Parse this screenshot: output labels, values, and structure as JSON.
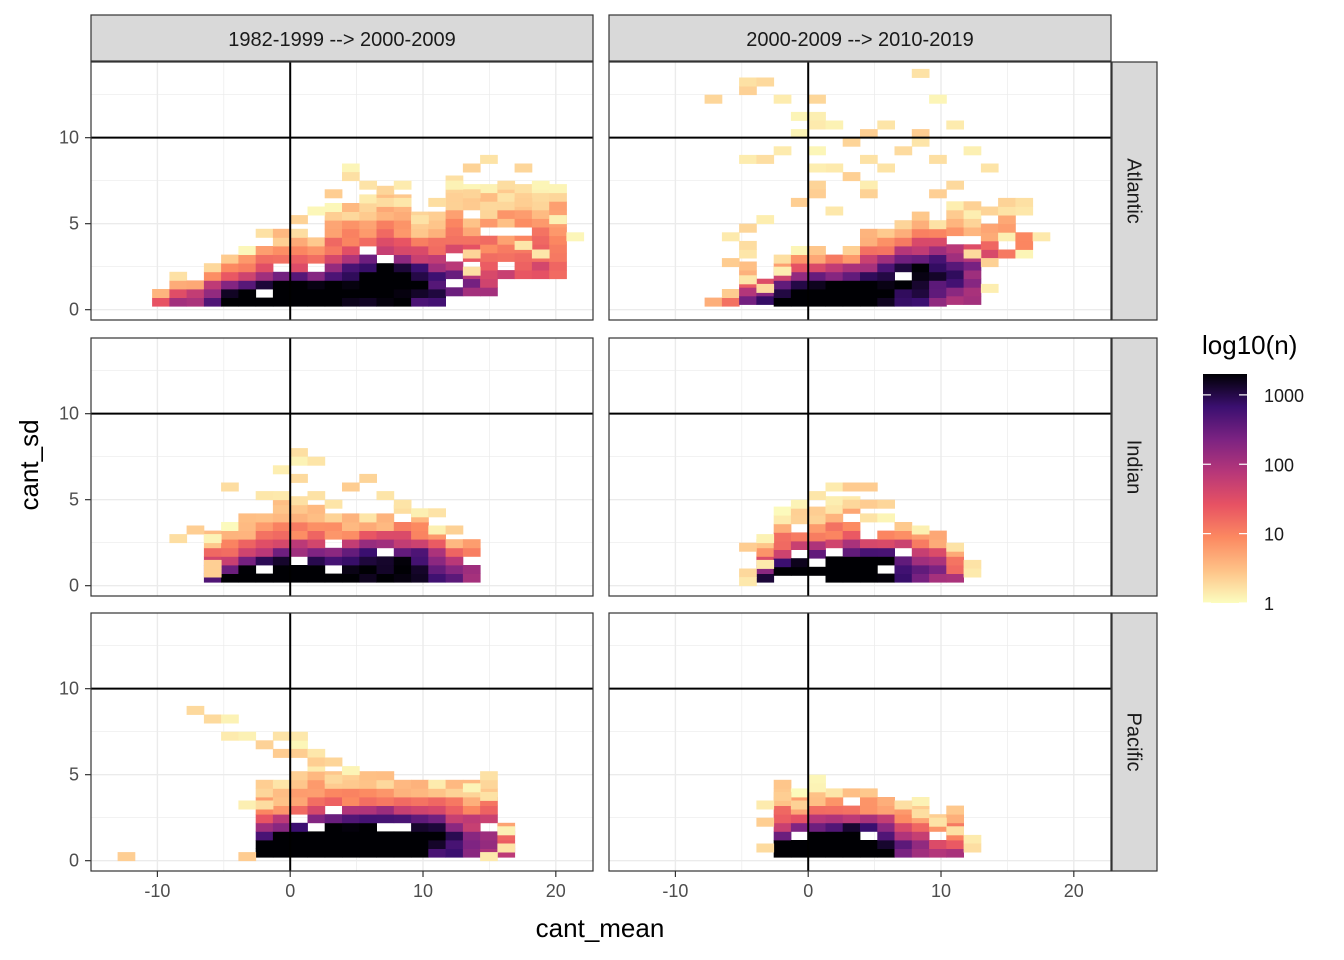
{
  "chart_data": {
    "type": "heatmap",
    "subtype": "faceted 2d-bin count",
    "xlabel": "cant_mean",
    "ylabel": "cant_sd",
    "xlim": [
      -15,
      22.8
    ],
    "ylim": [
      -0.6,
      14.4
    ],
    "x_ticks": [
      -10,
      0,
      10,
      20
    ],
    "x_tick_labels": [
      "-10",
      "0",
      "10",
      "20"
    ],
    "y_ticks": [
      0,
      5,
      10
    ],
    "y_tick_labels": [
      "0",
      "5",
      "10"
    ],
    "reference_lines": {
      "vertical_x": 0,
      "horizontal_y": 10
    },
    "bin_width_x": 1.3,
    "bin_height_y": 0.5,
    "columns": [
      "1982-1999 --> 2000-2009",
      "2000-2009 --> 2010-2019"
    ],
    "rows": [
      "Atlantic",
      "Indian",
      "Pacific"
    ],
    "legend": {
      "title": "log10(n)",
      "scale": "log10",
      "breaks": [
        1,
        10,
        100,
        1000
      ],
      "break_labels": [
        "1",
        "10",
        "100",
        "1000"
      ],
      "range": [
        1,
        2000
      ],
      "colors": [
        "#fcfdbf",
        "#fec287",
        "#fc8961",
        "#e75263",
        "#b73779",
        "#7c2382",
        "#3b0f70",
        "#000004"
      ]
    },
    "panels": [
      {
        "col": 0,
        "row": 0,
        "shape": [
          [
            -11,
            -9,
            0.2,
            0.9
          ],
          [
            -10,
            -7,
            0.2,
            1.6
          ],
          [
            -8,
            -5,
            0.2,
            2.3
          ],
          [
            -5,
            -2,
            0.2,
            3.0
          ],
          [
            -2,
            2,
            0.2,
            4.5
          ],
          [
            2,
            5,
            0.2,
            5.8
          ],
          [
            5,
            9,
            0.2,
            6.5
          ],
          [
            9,
            12,
            0.2,
            5.6
          ],
          [
            12,
            16,
            0.8,
            7.2
          ],
          [
            16,
            21,
            1.8,
            7.0
          ]
        ],
        "hot": [
          [
            0,
            0.2,
            1.35
          ],
          [
            7,
            1.8,
            0.9
          ],
          [
            -4,
            0.5,
            0.4
          ],
          [
            11,
            1.2,
            0.3
          ]
        ],
        "scatter": [
          [
            7,
            6.3
          ],
          [
            8,
            7.3
          ],
          [
            6,
            7.0
          ],
          [
            4,
            8.0
          ],
          [
            3,
            6.5
          ],
          [
            5,
            7.5
          ],
          [
            13,
            6.8
          ],
          [
            14,
            8.2
          ],
          [
            15,
            8.7
          ],
          [
            17,
            8.1
          ],
          [
            16,
            7.4
          ],
          [
            19,
            7.2
          ],
          [
            18,
            6.0
          ],
          [
            20,
            5.0
          ],
          [
            21,
            4.3
          ],
          [
            19,
            3.3
          ],
          [
            17,
            3.8
          ],
          [
            12,
            7.2
          ],
          [
            9,
            6.0
          ],
          [
            10,
            5.2
          ],
          [
            11,
            6.1
          ],
          [
            13,
            3.4
          ],
          [
            14,
            2.1
          ],
          [
            2,
            5.7
          ],
          [
            1,
            5.0
          ]
        ]
      },
      {
        "col": 1,
        "row": 0,
        "shape": [
          [
            -8,
            -5,
            0.2,
            1.0
          ],
          [
            -5,
            -2,
            0.3,
            2.0
          ],
          [
            -2,
            1,
            0.2,
            3.2
          ],
          [
            1,
            4,
            0.2,
            3.6
          ],
          [
            4,
            7,
            0.2,
            4.2
          ],
          [
            7,
            10,
            0.2,
            5.2
          ],
          [
            10,
            13,
            0.3,
            5.9
          ],
          [
            13,
            17,
            3.0,
            6.3
          ]
        ],
        "hot": [
          [
            0.5,
            0.2,
            1.3
          ],
          [
            9,
            2.4,
            0.8
          ],
          [
            4,
            1.0,
            0.5
          ]
        ],
        "scatter": [
          [
            -7,
            12.2
          ],
          [
            -5,
            12.8
          ],
          [
            -4,
            13.1
          ],
          [
            -3,
            13.3
          ],
          [
            -2,
            12.0
          ],
          [
            -1,
            11.4
          ],
          [
            0,
            12.2
          ],
          [
            0,
            11.0
          ],
          [
            1,
            10.5
          ],
          [
            2,
            10.8
          ],
          [
            3,
            9.7
          ],
          [
            4,
            10.1
          ],
          [
            -2,
            9.3
          ],
          [
            -1,
            10.0
          ],
          [
            1,
            9.0
          ],
          [
            2,
            8.2
          ],
          [
            3,
            7.6
          ],
          [
            4,
            8.7
          ],
          [
            5,
            7.3
          ],
          [
            6,
            8.3
          ],
          [
            7,
            9.2
          ],
          [
            5,
            6.5
          ],
          [
            6,
            10.5
          ],
          [
            8,
            10.0
          ],
          [
            9,
            9.5
          ],
          [
            10,
            8.6
          ],
          [
            11,
            10.6
          ],
          [
            12,
            9.1
          ],
          [
            13,
            8.4
          ],
          [
            9,
            13.5
          ],
          [
            10,
            12.3
          ],
          [
            11,
            7.4
          ],
          [
            10,
            6.6
          ],
          [
            -5,
            8.9
          ],
          [
            -3,
            8.5
          ],
          [
            -6,
            2.6
          ],
          [
            -5,
            3.4
          ],
          [
            -6,
            4.3
          ],
          [
            -4,
            4.8
          ],
          [
            -3,
            5.0
          ],
          [
            -4,
            3.6
          ],
          [
            -5,
            1.5
          ],
          [
            -3,
            1.1
          ],
          [
            -2,
            2.2
          ],
          [
            12,
            3.1
          ],
          [
            14,
            2.5
          ],
          [
            14,
            1.4
          ],
          [
            15,
            4.3
          ],
          [
            16,
            3.3
          ],
          [
            15,
            5.6
          ],
          [
            18,
            4.2
          ],
          [
            -1,
            6.3
          ],
          [
            0,
            7.2
          ],
          [
            1,
            6.8
          ],
          [
            2,
            5.7
          ],
          [
            1,
            8.1
          ]
        ]
      },
      {
        "col": 0,
        "row": 1,
        "shape": [
          [
            -6,
            -4,
            0.2,
            3.3
          ],
          [
            -4,
            -1,
            0.2,
            4.3
          ],
          [
            -1,
            2,
            0.2,
            4.6
          ],
          [
            2,
            5,
            0.2,
            3.9
          ],
          [
            5,
            8,
            0.2,
            4.0
          ],
          [
            8,
            11,
            0.2,
            4.2
          ],
          [
            11,
            14,
            0.2,
            2.6
          ]
        ],
        "hot": [
          [
            -1,
            0.2,
            1.3
          ],
          [
            6,
            1.4,
            0.6
          ],
          [
            10,
            1.0,
            0.5
          ]
        ],
        "scatter": [
          [
            0,
            7.6
          ],
          [
            1,
            7.3
          ],
          [
            2,
            7.1
          ],
          [
            -1,
            6.7
          ],
          [
            0,
            6.3
          ],
          [
            1,
            6.1
          ],
          [
            -5,
            5.6
          ],
          [
            -4,
            5.9
          ],
          [
            -2,
            5.4
          ],
          [
            -1,
            5.3
          ],
          [
            2,
            5.3
          ],
          [
            3,
            4.8
          ],
          [
            4,
            5.6
          ],
          [
            6,
            6.3
          ],
          [
            7,
            5.0
          ],
          [
            9,
            4.6
          ],
          [
            10,
            4.4
          ],
          [
            11,
            4.2
          ],
          [
            11,
            3.4
          ],
          [
            12,
            3.0
          ],
          [
            -7,
            3.4
          ],
          [
            -6,
            2.9
          ],
          [
            -8,
            2.8
          ],
          [
            -6,
            1.4
          ],
          [
            -6,
            0.5
          ]
        ]
      },
      {
        "col": 1,
        "row": 1,
        "shape": [
          [
            -4,
            -2,
            0.2,
            2.6
          ],
          [
            -2,
            1,
            0.6,
            4.4
          ],
          [
            1,
            4,
            0.2,
            4.9
          ],
          [
            4,
            7,
            0.2,
            3.9
          ],
          [
            7,
            10,
            0.2,
            3.2
          ],
          [
            10,
            12,
            0.2,
            1.7
          ]
        ],
        "hot": [
          [
            0.5,
            0.2,
            1.3
          ],
          [
            6,
            1.2,
            0.7
          ]
        ],
        "scatter": [
          [
            -1,
            4.9
          ],
          [
            0,
            5.1
          ],
          [
            1,
            5.4
          ],
          [
            2,
            5.7
          ],
          [
            3,
            5.6
          ],
          [
            4,
            5.8
          ],
          [
            3,
            4.6
          ],
          [
            5,
            4.8
          ],
          [
            6,
            4.5
          ],
          [
            -5,
            0.7
          ],
          [
            -4,
            0.4
          ],
          [
            -3,
            1.2
          ],
          [
            -4,
            2.0
          ],
          [
            -3,
            2.5
          ],
          [
            8,
            3.4
          ],
          [
            9,
            3.0
          ],
          [
            11,
            2.2
          ],
          [
            12,
            1.4
          ],
          [
            12,
            0.7
          ]
        ]
      },
      {
        "col": 0,
        "row": 2,
        "shape": [
          [
            -3,
            0,
            0.2,
            4.4
          ],
          [
            0,
            3,
            0.2,
            5.2
          ],
          [
            3,
            6,
            0.2,
            4.9
          ],
          [
            6,
            9,
            0.2,
            4.8
          ],
          [
            9,
            12,
            0.2,
            4.8
          ],
          [
            12,
            15,
            0.2,
            4.8
          ],
          [
            15,
            17,
            0.2,
            2.4
          ]
        ],
        "hot": [
          [
            0,
            0.2,
            1.35
          ],
          [
            7,
            1.6,
            0.8
          ],
          [
            3,
            0.8,
            0.5
          ],
          [
            11,
            1.4,
            0.5
          ]
        ],
        "scatter": [
          [
            -7,
            8.5
          ],
          [
            -6,
            8.2
          ],
          [
            -5,
            8.0
          ],
          [
            -4,
            7.0
          ],
          [
            -3,
            7.0
          ],
          [
            -2,
            6.6
          ],
          [
            -1,
            6.4
          ],
          [
            0,
            6.7
          ],
          [
            1,
            6.4
          ],
          [
            2,
            6.1
          ],
          [
            -1,
            7.3
          ],
          [
            0,
            7.0
          ],
          [
            1,
            6.8
          ],
          [
            2,
            5.7
          ],
          [
            3,
            5.6
          ],
          [
            4,
            5.3
          ],
          [
            3,
            4.6
          ],
          [
            -3,
            3.4
          ],
          [
            -2,
            3.2
          ],
          [
            -3,
            0.4
          ],
          [
            -12,
            0.2
          ],
          [
            15,
            3.7
          ],
          [
            16,
            1.6
          ],
          [
            16,
            0.7
          ],
          [
            15,
            0.2
          ],
          [
            14,
            4.2
          ]
        ]
      },
      {
        "col": 1,
        "row": 2,
        "shape": [
          [
            -3,
            0,
            0.2,
            4.2
          ],
          [
            0,
            3,
            0.2,
            4.1
          ],
          [
            3,
            6,
            0.2,
            3.7
          ],
          [
            6,
            9,
            0.2,
            3.4
          ],
          [
            9,
            12,
            0.2,
            2.6
          ]
        ],
        "hot": [
          [
            0.5,
            0.2,
            1.3
          ],
          [
            4,
            1.2,
            0.7
          ]
        ],
        "scatter": [
          [
            -3,
            0.6
          ],
          [
            -3,
            3.3
          ],
          [
            -2,
            3.8
          ],
          [
            -1,
            3.4
          ],
          [
            0,
            4.7
          ],
          [
            1,
            4.0
          ],
          [
            7,
            3.2
          ],
          [
            8,
            2.8
          ],
          [
            9,
            2.5
          ],
          [
            10,
            2.1
          ],
          [
            11,
            1.7
          ],
          [
            12,
            1.2
          ],
          [
            12,
            0.6
          ],
          [
            -3,
            2.0
          ]
        ]
      }
    ]
  }
}
